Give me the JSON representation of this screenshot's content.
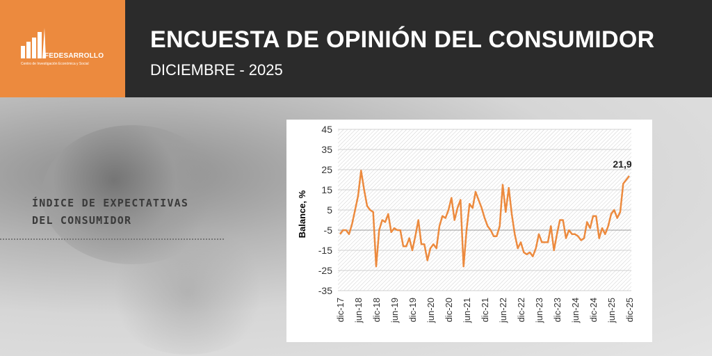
{
  "header": {
    "logo_name": "FEDESARROLLO",
    "logo_tagline": "Centro de Investigación Económica y Social",
    "title": "ENCUESTA DE OPINIÓN DEL CONSUMIDOR",
    "subtitle": "DICIEMBRE - 2025"
  },
  "side": {
    "title_line1": "ÍNDICE DE EXPECTATIVAS",
    "title_line2": "DEL CONSUMIDOR"
  },
  "colors": {
    "accent": "#ec8a3e",
    "header_bg": "#2b2b2b",
    "line": "#ec8a3e"
  },
  "chart_data": {
    "type": "line",
    "ylabel": "Balance, %",
    "ylim": [
      -35,
      45
    ],
    "yticks": [
      45,
      35,
      25,
      15,
      5,
      -5,
      -15,
      -25,
      -35
    ],
    "xticks": [
      "dic-17",
      "jun-18",
      "dic-18",
      "jun-19",
      "dic-19",
      "jun-20",
      "dic-20",
      "jun-21",
      "dic-21",
      "jun-22",
      "dic-22",
      "jun-23",
      "dic-23",
      "jun-24",
      "dic-24",
      "jun-25",
      "dic-25"
    ],
    "annotation": {
      "label": "21,9",
      "value": 21.9
    },
    "series": [
      {
        "values": [
          -7,
          -5,
          -5,
          -7,
          -2,
          5,
          12,
          24.5,
          15,
          7,
          5,
          4,
          -23,
          -5,
          0,
          -1,
          3,
          -6,
          -4,
          -5,
          -5,
          -13,
          -13,
          -9,
          -15,
          -8,
          0,
          -12,
          -12,
          -20,
          -14,
          -12,
          -14,
          -3,
          2,
          1,
          5,
          11,
          0,
          6,
          10,
          -23,
          -5,
          8,
          6,
          14,
          10,
          6,
          1,
          -3,
          -5,
          -8,
          -8,
          -3,
          17.5,
          4,
          16,
          3,
          -7,
          -14,
          -11,
          -16,
          -17,
          -16,
          -18,
          -14,
          -7,
          -11,
          -11,
          -11,
          -3,
          -15,
          -7,
          0,
          0,
          -9,
          -5,
          -7,
          -7,
          -8,
          -10,
          -9,
          -1,
          -4,
          2,
          2,
          -9,
          -4,
          -7,
          -3,
          3,
          5,
          1,
          4,
          18,
          20,
          21.9
        ]
      }
    ]
  }
}
